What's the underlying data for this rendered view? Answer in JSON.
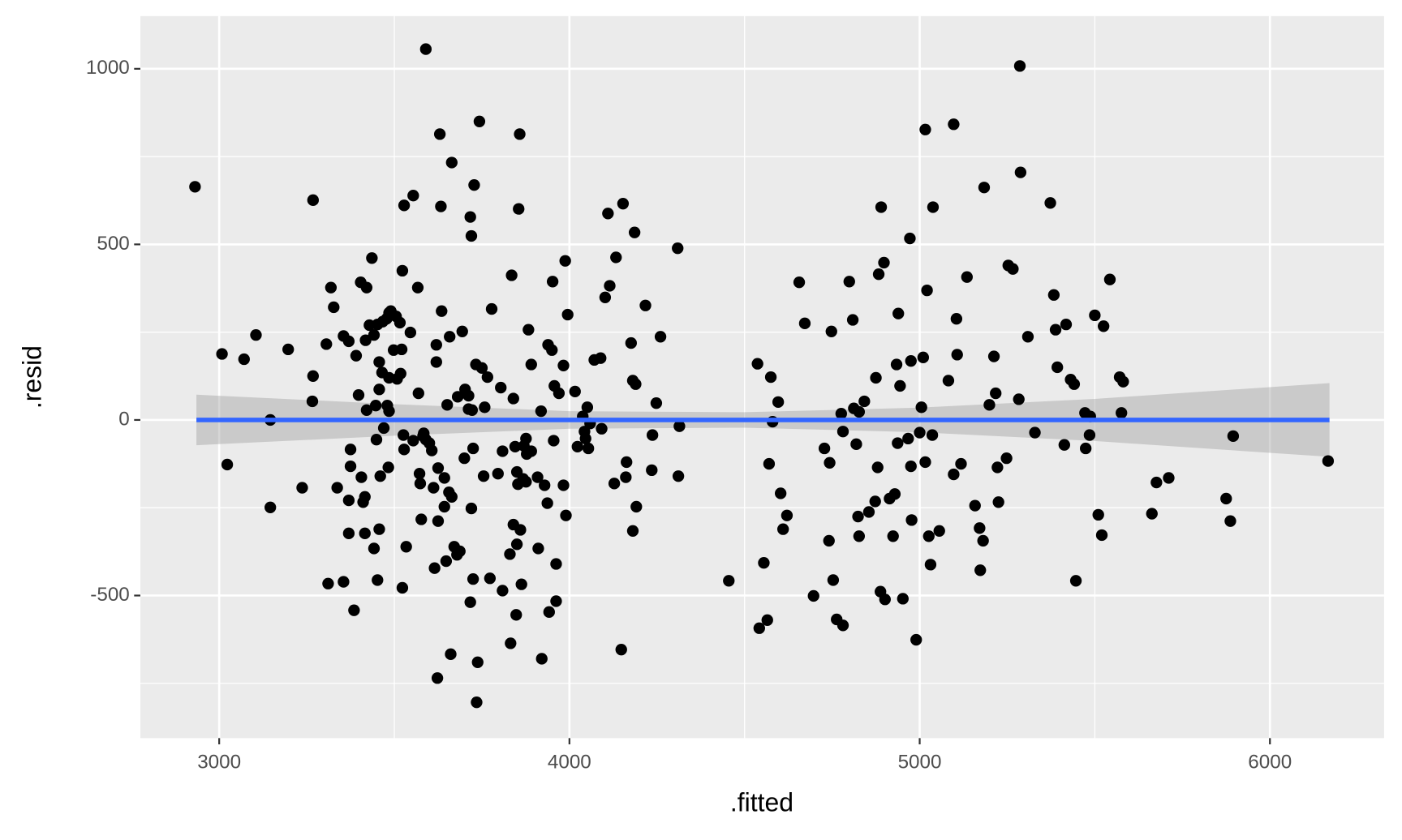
{
  "chart_data": {
    "type": "scatter",
    "xlabel": ".fitted",
    "ylabel": ".resid",
    "xlim": [
      2775,
      6326
    ],
    "ylim": [
      -906,
      1150
    ],
    "xticks": [
      3000,
      4000,
      5000,
      6000
    ],
    "yticks": [
      -500,
      0,
      500,
      1000
    ],
    "x_minor_grid": [
      3500,
      4500,
      5500
    ],
    "y_minor_grid": [
      -750,
      -250,
      250,
      750
    ],
    "grid": true,
    "point_color": "#000000",
    "x": [
      2931,
      3008,
      3023,
      3071,
      3105,
      3146,
      3146,
      3197,
      3237,
      3268,
      3268,
      3266,
      3306,
      3311,
      3319,
      3327,
      3337,
      3355,
      3355,
      3370,
      3375,
      3375,
      3370,
      3370,
      3385,
      3391,
      3398,
      3404,
      3406,
      3411,
      3416,
      3416,
      3418,
      3421,
      3421,
      3429,
      3436,
      3442,
      3442,
      3447,
      3449,
      3452,
      3452,
      3457,
      3457,
      3457,
      3460,
      3465,
      3467,
      3470,
      3478,
      3480,
      3483,
      3485,
      3485,
      3485,
      3490,
      3498,
      3505,
      3508,
      3516,
      3518,
      3521,
      3523,
      3523,
      3526,
      3528,
      3528,
      3534,
      3546,
      3554,
      3554,
      3567,
      3569,
      3572,
      3574,
      3577,
      3582,
      3584,
      3590,
      3590,
      3600,
      3607,
      3612,
      3615,
      3620,
      3620,
      3623,
      3625,
      3625,
      3630,
      3633,
      3635,
      3643,
      3643,
      3648,
      3651,
      3656,
      3658,
      3661,
      3664,
      3664,
      3671,
      3679,
      3681,
      3687,
      3694,
      3700,
      3702,
      3712,
      3712,
      3717,
      3717,
      3720,
      3720,
      3722,
      3725,
      3725,
      3728,
      3733,
      3735,
      3738,
      3743,
      3750,
      3755,
      3758,
      3766,
      3773,
      3778,
      3796,
      3804,
      3809,
      3809,
      3830,
      3832,
      3835,
      3840,
      3840,
      3845,
      3850,
      3855,
      3858,
      3848,
      3850,
      3853,
      3860,
      3863,
      3868,
      3870,
      3876,
      3876,
      3878,
      3883,
      3891,
      3891,
      3909,
      3911,
      3919,
      3921,
      3929,
      3937,
      3939,
      3942,
      3950,
      3952,
      3955,
      3957,
      3962,
      3962,
      3970,
      3983,
      3983,
      3988,
      3990,
      3995,
      4016,
      4023,
      4038,
      4043,
      4046,
      4051,
      4054,
      4059,
      4071,
      4089,
      4092,
      4102,
      4110,
      4115,
      4128,
      4133,
      4148,
      4153,
      4161,
      4163,
      4176,
      4181,
      4189,
      4186,
      4191,
      4181,
      4217,
      4235,
      4237,
      4248,
      4260,
      4309,
      4311,
      4314,
      4455,
      4537,
      4542,
      4555,
      4565,
      4570,
      4575,
      4580,
      4596,
      4603,
      4610,
      4621,
      4656,
      4672,
      4697,
      4728,
      4741,
      4743,
      4748,
      4753,
      4763,
      4776,
      4781,
      4781,
      4799,
      4809,
      4812,
      4819,
      4824,
      4827,
      4827,
      4842,
      4855,
      4873,
      4875,
      4880,
      4883,
      4888,
      4890,
      4898,
      4901,
      4914,
      4924,
      4929,
      4934,
      4937,
      4939,
      4944,
      4952,
      4967,
      4972,
      4975,
      4975,
      4977,
      4990,
      5000,
      5005,
      5010,
      5016,
      5016,
      5021,
      5026,
      5031,
      5036,
      5038,
      5056,
      5082,
      5097,
      5097,
      5105,
      5107,
      5118,
      5135,
      5158,
      5171,
      5173,
      5181,
      5184,
      5199,
      5212,
      5217,
      5222,
      5225,
      5248,
      5253,
      5266,
      5283,
      5286,
      5288,
      5309,
      5329,
      5373,
      5383,
      5388,
      5393,
      5413,
      5418,
      5431,
      5441,
      5446,
      5472,
      5474,
      5485,
      5487,
      5500,
      5510,
      5520,
      5525,
      5543,
      5571,
      5576,
      5581,
      5663,
      5676,
      5711,
      5875,
      5887,
      5895,
      6166
    ],
    "y": [
      664,
      188,
      -127,
      173,
      242,
      0,
      -249,
      201,
      -193,
      626,
      125,
      53,
      216,
      -466,
      377,
      321,
      -193,
      239,
      -461,
      224,
      -84,
      -132,
      -229,
      -323,
      -542,
      183,
      71,
      392,
      -163,
      -234,
      -219,
      -323,
      227,
      377,
      28,
      270,
      461,
      242,
      -366,
      41,
      -56,
      -456,
      272,
      165,
      87,
      -311,
      -160,
      135,
      280,
      -23,
      288,
      41,
      -135,
      305,
      120,
      25,
      310,
      199,
      295,
      117,
      277,
      132,
      201,
      425,
      -478,
      -43,
      -84,
      611,
      -361,
      249,
      639,
      -59,
      377,
      76,
      -153,
      -181,
      -283,
      -46,
      -38,
      1056,
      -56,
      -66,
      -87,
      -193,
      -422,
      165,
      214,
      -735,
      -137,
      -288,
      814,
      608,
      310,
      -247,
      -165,
      -402,
      43,
      -206,
      237,
      -667,
      733,
      -219,
      -361,
      -384,
      66,
      -374,
      252,
      -109,
      87,
      69,
      31,
      -519,
      578,
      524,
      -252,
      28,
      -453,
      -81,
      669,
      158,
      -804,
      -690,
      850,
      148,
      -160,
      36,
      122,
      -451,
      316,
      -153,
      92,
      -486,
      -89,
      -382,
      -636,
      412,
      61,
      -298,
      -76,
      -354,
      601,
      814,
      -555,
      -148,
      -183,
      -313,
      -468,
      -168,
      -74,
      -53,
      -176,
      -97,
      257,
      158,
      -89,
      -163,
      -366,
      25,
      -680,
      -186,
      -237,
      214,
      -547,
      199,
      394,
      -59,
      97,
      -410,
      -516,
      76,
      -186,
      155,
      453,
      -272,
      300,
      81,
      -76,
      10,
      -33,
      -53,
      36,
      -81,
      -10,
      171,
      176,
      -25,
      349,
      588,
      382,
      -181,
      463,
      -654,
      616,
      -163,
      -120,
      219,
      112,
      102,
      534,
      -247,
      -316,
      326,
      -143,
      -43,
      48,
      237,
      489,
      -160,
      -18,
      -458,
      160,
      -593,
      -407,
      -570,
      -125,
      122,
      -5,
      51,
      -209,
      -311,
      -272,
      392,
      275,
      -501,
      -81,
      -344,
      -122,
      252,
      -456,
      -568,
      18,
      -585,
      -33,
      394,
      285,
      33,
      -69,
      -275,
      -331,
      23,
      53,
      -262,
      -232,
      120,
      -135,
      415,
      -489,
      606,
      448,
      -511,
      -224,
      -331,
      -211,
      158,
      -66,
      303,
      97,
      -509,
      -53,
      517,
      168,
      -132,
      -285,
      -626,
      -36,
      36,
      178,
      827,
      -120,
      369,
      -331,
      -412,
      -43,
      606,
      -316,
      112,
      -155,
      842,
      288,
      186,
      -125,
      407,
      -244,
      -308,
      -428,
      -344,
      662,
      43,
      181,
      76,
      -135,
      -234,
      -109,
      440,
      430,
      59,
      1008,
      705,
      237,
      -36,
      618,
      356,
      257,
      150,
      -71,
      272,
      115,
      102,
      -458,
      20,
      -81,
      -43,
      10,
      298,
      -270,
      -328,
      267,
      400,
      122,
      20,
      109,
      -267,
      -178,
      -165,
      -224,
      -288,
      -46,
      -117
    ],
    "smooth": {
      "color": "#3366ff",
      "x": [
        2935,
        3500,
        4000,
        4500,
        5000,
        5500,
        6170
      ],
      "y": [
        0,
        0,
        0,
        0,
        0,
        0,
        0
      ],
      "lower": [
        -72,
        -45,
        -25,
        -22,
        -35,
        -60,
        -105
      ],
      "upper": [
        72,
        45,
        25,
        22,
        35,
        60,
        105
      ]
    }
  }
}
